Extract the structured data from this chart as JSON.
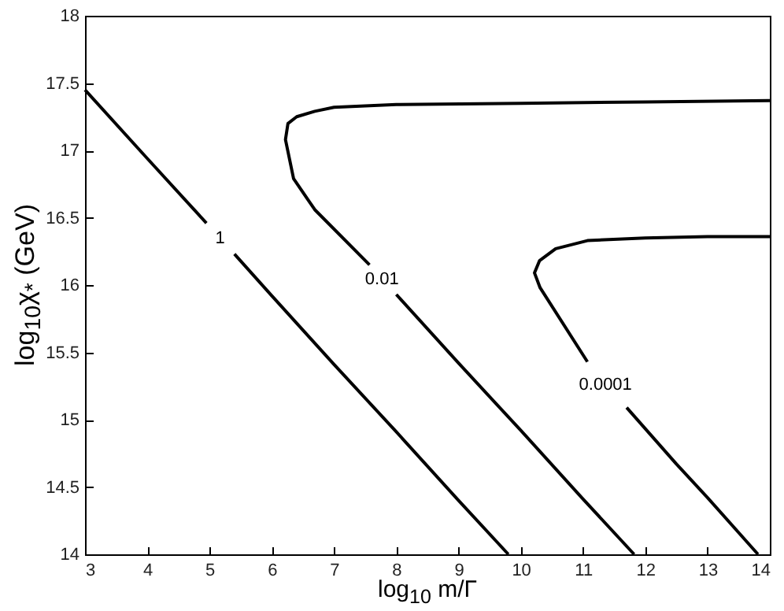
{
  "chart_data": {
    "type": "line",
    "xlabel": "log$_{10}$ m/Γ",
    "ylabel": "log$_{10}$χ$_{*}$ (GeV)",
    "xlim": [
      3,
      14
    ],
    "xticks": [
      3,
      4,
      5,
      6,
      7,
      8,
      9,
      10,
      11,
      12,
      13,
      14
    ],
    "ylim": [
      14,
      18
    ],
    "yticks": [
      14,
      14.5,
      15,
      15.5,
      16,
      16.5,
      17,
      17.5,
      18
    ],
    "grid": false,
    "line_style": "solid",
    "marker": "none",
    "series": [
      {
        "name": "1",
        "color": "#000000",
        "x": [
          3,
          4,
          4.95,
          5.17,
          5.4,
          6,
          7,
          8,
          9,
          9.8
        ],
        "values": [
          17.45,
          16.94,
          16.46,
          null,
          16.23,
          15.92,
          15.41,
          14.91,
          14.4,
          14
        ]
      },
      {
        "name": "0.01",
        "color": "#000000",
        "x": [
          14,
          12,
          10,
          8,
          7,
          6.69,
          6.4,
          6.26,
          6.22,
          6.35,
          6.69,
          7.57,
          7.77,
          8,
          9,
          10,
          11,
          11.82
        ],
        "values": [
          17.37,
          17.36,
          17.35,
          17.34,
          17.32,
          17.29,
          17.25,
          17.2,
          17.08,
          16.79,
          16.56,
          16.15,
          null,
          15.93,
          15.42,
          14.92,
          14.41,
          14
        ]
      },
      {
        "name": "0.0001",
        "color": "#000000",
        "x": [
          14,
          13,
          12,
          11.07,
          10.56,
          10.3,
          10.22,
          10.31,
          11.07,
          11.36,
          11.7,
          12.5,
          13,
          13.81
        ],
        "values": [
          16.36,
          16.36,
          16.35,
          16.33,
          16.27,
          16.18,
          16.09,
          15.98,
          15.43,
          null,
          15.09,
          14.67,
          14.42,
          14
        ]
      }
    ]
  }
}
